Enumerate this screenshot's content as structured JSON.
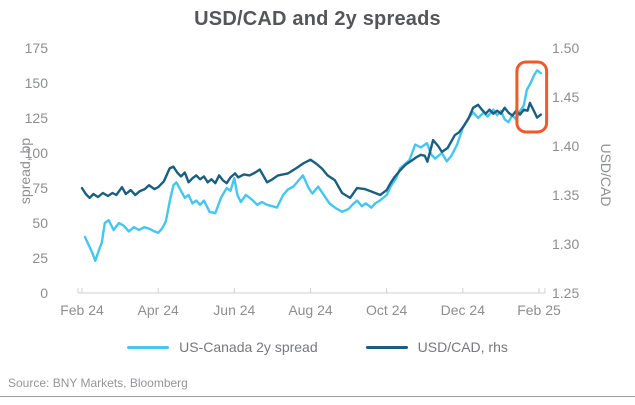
{
  "page": {
    "title": "USD/CAD and 2y spreads",
    "source": "Source: BNY Markets, Bloomberg"
  },
  "colors": {
    "spread_line": "#45c6f0",
    "usdcad_line": "#1a5f80",
    "annotation": "#f05a28",
    "title_text": "#55565a",
    "axis_text": "#8c8e90",
    "axis_line": "#cfd0d1",
    "legend_text": "#77787b",
    "source_text": "#939598"
  },
  "chart_data": {
    "type": "line",
    "title": "USD/CAD and 2y spreads",
    "grid": false,
    "x_axis": {
      "tick_labels": [
        "Feb 24",
        "Apr 24",
        "Jun 24",
        "Aug 24",
        "Oct 24",
        "Dec 24",
        "Feb 25"
      ],
      "tick_months": [
        0,
        2,
        4,
        6,
        8,
        10,
        12
      ],
      "range_months": [
        0,
        12.15
      ]
    },
    "left_axis": {
      "label": "spread, bp",
      "ticks": [
        0,
        25,
        50,
        75,
        100,
        125,
        150,
        175
      ],
      "range": [
        0,
        175
      ]
    },
    "right_axis": {
      "label": "USD/CAD",
      "tick_labels": [
        "1.25",
        "1.30",
        "1.35",
        "1.40",
        "1.45",
        "1.50"
      ],
      "ticks": [
        1.25,
        1.3,
        1.35,
        1.4,
        1.45,
        1.5
      ],
      "range": [
        1.25,
        1.5
      ]
    },
    "legend": {
      "position": "bottom",
      "entries": [
        "US-Canada 2y spread",
        "USD/CAD, rhs"
      ]
    },
    "annotation": {
      "type": "highlight-box",
      "color": "#f05a28",
      "x_months": [
        11.42,
        12.2
      ],
      "left_axis_values": [
        115,
        165
      ]
    },
    "series": [
      {
        "name": "US-Canada 2y spread",
        "axis": "left",
        "color": "#45c6f0",
        "points": [
          [
            0.08,
            40
          ],
          [
            0.18,
            34
          ],
          [
            0.28,
            28
          ],
          [
            0.35,
            23
          ],
          [
            0.45,
            31
          ],
          [
            0.52,
            36
          ],
          [
            0.6,
            50
          ],
          [
            0.7,
            52
          ],
          [
            0.83,
            45
          ],
          [
            0.97,
            50
          ],
          [
            1.1,
            48
          ],
          [
            1.23,
            44
          ],
          [
            1.36,
            47
          ],
          [
            1.5,
            45
          ],
          [
            1.63,
            47
          ],
          [
            1.76,
            46
          ],
          [
            1.9,
            44
          ],
          [
            2.0,
            43
          ],
          [
            2.1,
            46
          ],
          [
            2.2,
            51
          ],
          [
            2.3,
            65
          ],
          [
            2.4,
            77
          ],
          [
            2.48,
            79
          ],
          [
            2.6,
            73
          ],
          [
            2.7,
            68
          ],
          [
            2.8,
            70
          ],
          [
            2.9,
            64
          ],
          [
            3.0,
            66
          ],
          [
            3.1,
            63
          ],
          [
            3.2,
            66
          ],
          [
            3.35,
            58
          ],
          [
            3.5,
            57
          ],
          [
            3.65,
            68
          ],
          [
            3.8,
            75
          ],
          [
            3.9,
            73
          ],
          [
            4.0,
            82
          ],
          [
            4.08,
            70
          ],
          [
            4.17,
            65
          ],
          [
            4.3,
            70
          ],
          [
            4.45,
            67
          ],
          [
            4.6,
            63
          ],
          [
            4.72,
            65
          ],
          [
            4.86,
            63
          ],
          [
            5.0,
            62
          ],
          [
            5.12,
            61
          ],
          [
            5.28,
            70
          ],
          [
            5.41,
            74
          ],
          [
            5.55,
            76
          ],
          [
            5.8,
            84
          ],
          [
            5.95,
            75
          ],
          [
            6.05,
            71
          ],
          [
            6.2,
            76
          ],
          [
            6.35,
            70
          ],
          [
            6.5,
            64
          ],
          [
            6.64,
            61
          ],
          [
            6.83,
            58
          ],
          [
            7.0,
            60
          ],
          [
            7.1,
            63
          ],
          [
            7.22,
            66
          ],
          [
            7.35,
            62
          ],
          [
            7.45,
            64
          ],
          [
            7.6,
            61
          ],
          [
            7.7,
            64
          ],
          [
            7.82,
            66
          ],
          [
            8.0,
            70
          ],
          [
            8.1,
            76
          ],
          [
            8.25,
            82
          ],
          [
            8.35,
            89
          ],
          [
            8.6,
            95
          ],
          [
            8.75,
            106
          ],
          [
            8.9,
            104
          ],
          [
            9.06,
            107
          ],
          [
            9.17,
            99
          ],
          [
            9.27,
            96
          ],
          [
            9.45,
            100
          ],
          [
            9.58,
            94
          ],
          [
            9.7,
            98
          ],
          [
            9.85,
            106
          ],
          [
            10.0,
            118
          ],
          [
            10.15,
            125
          ],
          [
            10.27,
            129
          ],
          [
            10.4,
            125
          ],
          [
            10.55,
            129
          ],
          [
            10.65,
            126
          ],
          [
            10.8,
            131
          ],
          [
            10.9,
            127
          ],
          [
            11.0,
            130
          ],
          [
            11.1,
            124
          ],
          [
            11.2,
            122
          ],
          [
            11.3,
            127
          ],
          [
            11.4,
            124
          ],
          [
            11.5,
            130
          ],
          [
            11.6,
            134
          ],
          [
            11.68,
            145
          ],
          [
            11.78,
            150
          ],
          [
            11.88,
            156
          ],
          [
            11.95,
            159
          ],
          [
            12.05,
            157
          ]
        ]
      },
      {
        "name": "USD/CAD, rhs",
        "axis": "right",
        "color": "#1a5f80",
        "points": [
          [
            0.0,
            1.357
          ],
          [
            0.1,
            1.351
          ],
          [
            0.2,
            1.347
          ],
          [
            0.3,
            1.351
          ],
          [
            0.42,
            1.348
          ],
          [
            0.55,
            1.352
          ],
          [
            0.68,
            1.349
          ],
          [
            0.8,
            1.352
          ],
          [
            0.9,
            1.35
          ],
          [
            1.05,
            1.358
          ],
          [
            1.15,
            1.351
          ],
          [
            1.28,
            1.355
          ],
          [
            1.4,
            1.35
          ],
          [
            1.52,
            1.354
          ],
          [
            1.65,
            1.356
          ],
          [
            1.76,
            1.36
          ],
          [
            1.9,
            1.356
          ],
          [
            2.0,
            1.358
          ],
          [
            2.15,
            1.364
          ],
          [
            2.3,
            1.377
          ],
          [
            2.4,
            1.379
          ],
          [
            2.5,
            1.373
          ],
          [
            2.6,
            1.369
          ],
          [
            2.7,
            1.373
          ],
          [
            2.8,
            1.363
          ],
          [
            2.9,
            1.367
          ],
          [
            3.0,
            1.37
          ],
          [
            3.1,
            1.366
          ],
          [
            3.2,
            1.369
          ],
          [
            3.3,
            1.363
          ],
          [
            3.4,
            1.366
          ],
          [
            3.5,
            1.362
          ],
          [
            3.6,
            1.37
          ],
          [
            3.7,
            1.365
          ],
          [
            3.8,
            1.362
          ],
          [
            3.9,
            1.368
          ],
          [
            4.02,
            1.372
          ],
          [
            4.1,
            1.368
          ],
          [
            4.25,
            1.371
          ],
          [
            4.4,
            1.37
          ],
          [
            4.55,
            1.373
          ],
          [
            4.67,
            1.376
          ],
          [
            4.86,
            1.363
          ],
          [
            5.0,
            1.366
          ],
          [
            5.15,
            1.37
          ],
          [
            5.41,
            1.372
          ],
          [
            5.65,
            1.378
          ],
          [
            5.8,
            1.382
          ],
          [
            6.0,
            1.386
          ],
          [
            6.15,
            1.382
          ],
          [
            6.3,
            1.377
          ],
          [
            6.45,
            1.37
          ],
          [
            6.64,
            1.365
          ],
          [
            6.83,
            1.352
          ],
          [
            7.04,
            1.347
          ],
          [
            7.22,
            1.357
          ],
          [
            7.43,
            1.356
          ],
          [
            7.64,
            1.353
          ],
          [
            7.83,
            1.35
          ],
          [
            8.0,
            1.355
          ],
          [
            8.1,
            1.362
          ],
          [
            8.2,
            1.368
          ],
          [
            8.35,
            1.375
          ],
          [
            8.5,
            1.381
          ],
          [
            8.65,
            1.385
          ],
          [
            8.8,
            1.389
          ],
          [
            8.9,
            1.391
          ],
          [
            9.0,
            1.39
          ],
          [
            9.07,
            1.384
          ],
          [
            9.22,
            1.406
          ],
          [
            9.35,
            1.4
          ],
          [
            9.45,
            1.394
          ],
          [
            9.6,
            1.398
          ],
          [
            9.79,
            1.411
          ],
          [
            9.9,
            1.414
          ],
          [
            10.0,
            1.419
          ],
          [
            10.15,
            1.428
          ],
          [
            10.27,
            1.439
          ],
          [
            10.4,
            1.442
          ],
          [
            10.5,
            1.437
          ],
          [
            10.6,
            1.433
          ],
          [
            10.7,
            1.437
          ],
          [
            10.8,
            1.433
          ],
          [
            10.9,
            1.436
          ],
          [
            11.0,
            1.433
          ],
          [
            11.1,
            1.439
          ],
          [
            11.2,
            1.434
          ],
          [
            11.3,
            1.431
          ],
          [
            11.4,
            1.436
          ],
          [
            11.5,
            1.432
          ],
          [
            11.6,
            1.437
          ],
          [
            11.7,
            1.436
          ],
          [
            11.76,
            1.444
          ],
          [
            11.85,
            1.437
          ],
          [
            11.95,
            1.429
          ],
          [
            12.05,
            1.432
          ]
        ]
      }
    ]
  }
}
